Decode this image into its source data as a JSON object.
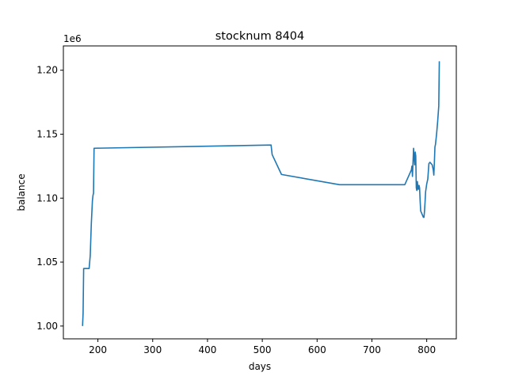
{
  "chart_data": {
    "type": "line",
    "title": "stocknum 8404",
    "xlabel": "days",
    "ylabel": "balance",
    "y_offset_text": "1e6",
    "xlim": [
      137,
      854
    ],
    "ylim": [
      990000,
      1219000
    ],
    "x_ticks": [
      200,
      300,
      400,
      500,
      600,
      700,
      800
    ],
    "x_tick_labels": [
      "200",
      "300",
      "400",
      "500",
      "600",
      "700",
      "800"
    ],
    "y_ticks": [
      1000000,
      1050000,
      1100000,
      1150000,
      1200000
    ],
    "y_tick_labels": [
      "1.00",
      "1.05",
      "1.10",
      "1.15",
      "1.20"
    ],
    "grid": false,
    "series_color": "#1f77b4",
    "series": [
      {
        "x": [
          172,
          173,
          174,
          178,
          182,
          184,
          186,
          188,
          190,
          191,
          192,
          193,
          194,
          516,
          518,
          535,
          641,
          760,
          772,
          773,
          774,
          775,
          776,
          777,
          778,
          779,
          780,
          781,
          782,
          783,
          784,
          785,
          786,
          787,
          788,
          789,
          790,
          791,
          792,
          793,
          794,
          795,
          796,
          797,
          798,
          800,
          802,
          804,
          806,
          808,
          810,
          812,
          813,
          814,
          815,
          816,
          818,
          820,
          822,
          823
        ],
        "y": [
          1000000,
          1010000,
          1045000,
          1045000,
          1045000,
          1045000,
          1055000,
          1080000,
          1098000,
          1102000,
          1104000,
          1139000,
          1139000,
          1141500,
          1134000,
          1118500,
          1110500,
          1110500,
          1122000,
          1125000,
          1117000,
          1128000,
          1139000,
          1132000,
          1126000,
          1136000,
          1133000,
          1108000,
          1106000,
          1113000,
          1107000,
          1107000,
          1110000,
          1108000,
          1098000,
          1090000,
          1089000,
          1088000,
          1087000,
          1086000,
          1085000,
          1085000,
          1090000,
          1097000,
          1105000,
          1111000,
          1115000,
          1127000,
          1128000,
          1127000,
          1126000,
          1122000,
          1118000,
          1128000,
          1140000,
          1142000,
          1150000,
          1160000,
          1172000,
          1207000
        ]
      }
    ]
  }
}
